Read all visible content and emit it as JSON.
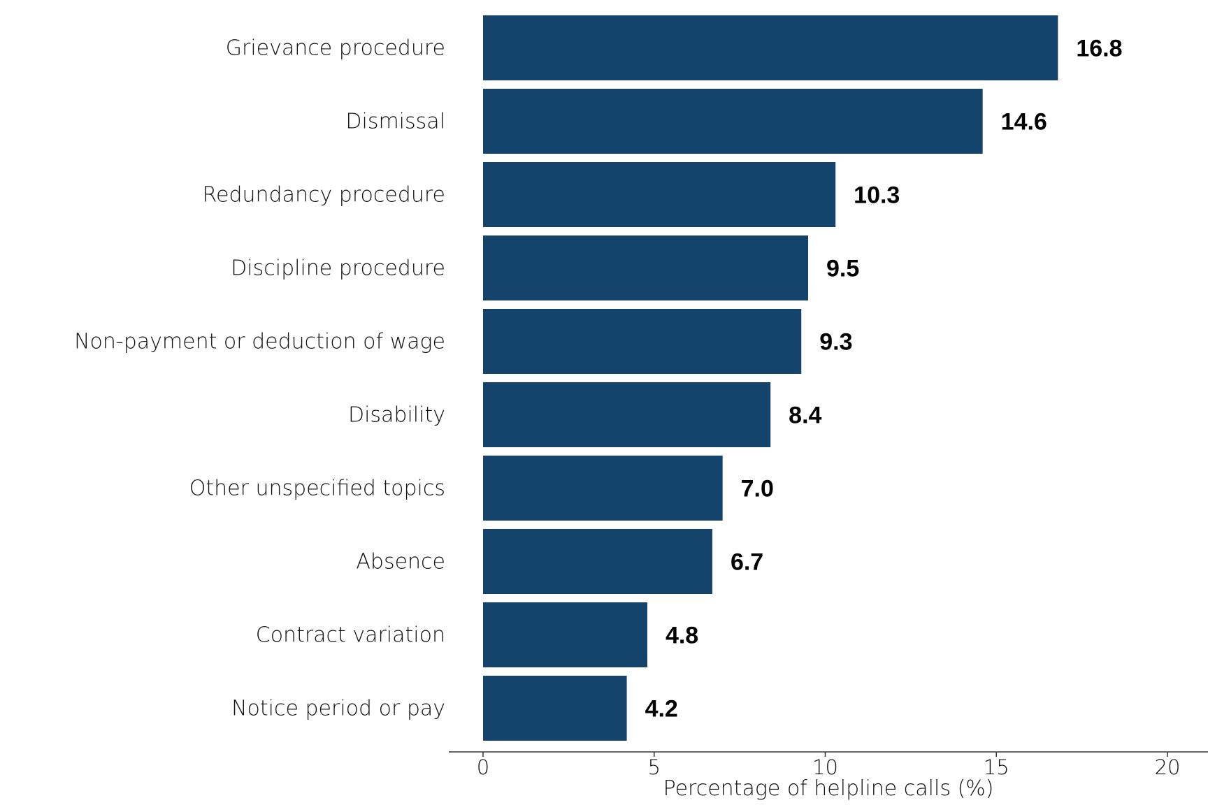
{
  "chart_data": {
    "type": "bar",
    "orientation": "horizontal",
    "categories": [
      "Grievance procedure",
      "Dismissal",
      "Redundancy procedure",
      "Discipline procedure",
      "Non-payment or deduction of wage",
      "Disability",
      "Other unspecified topics",
      "Absence",
      "Contract variation",
      "Notice period or pay"
    ],
    "values": [
      16.8,
      14.6,
      10.3,
      9.5,
      9.3,
      8.4,
      7.0,
      6.7,
      4.8,
      4.2
    ],
    "value_labels": [
      "16.8",
      "14.6",
      "10.3",
      "9.5",
      "9.3",
      "8.4",
      "7.0",
      "6.7",
      "4.8",
      "4.2"
    ],
    "title": "",
    "xlabel": "Percentage of helpline calls (%)",
    "ylabel": "",
    "xlim": [
      0,
      20
    ],
    "xticks": [
      0,
      5,
      10,
      15,
      20
    ],
    "xtick_labels": [
      "0",
      "5",
      "10",
      "15",
      "20"
    ],
    "grid": false,
    "bar_color": "#14446c"
  }
}
